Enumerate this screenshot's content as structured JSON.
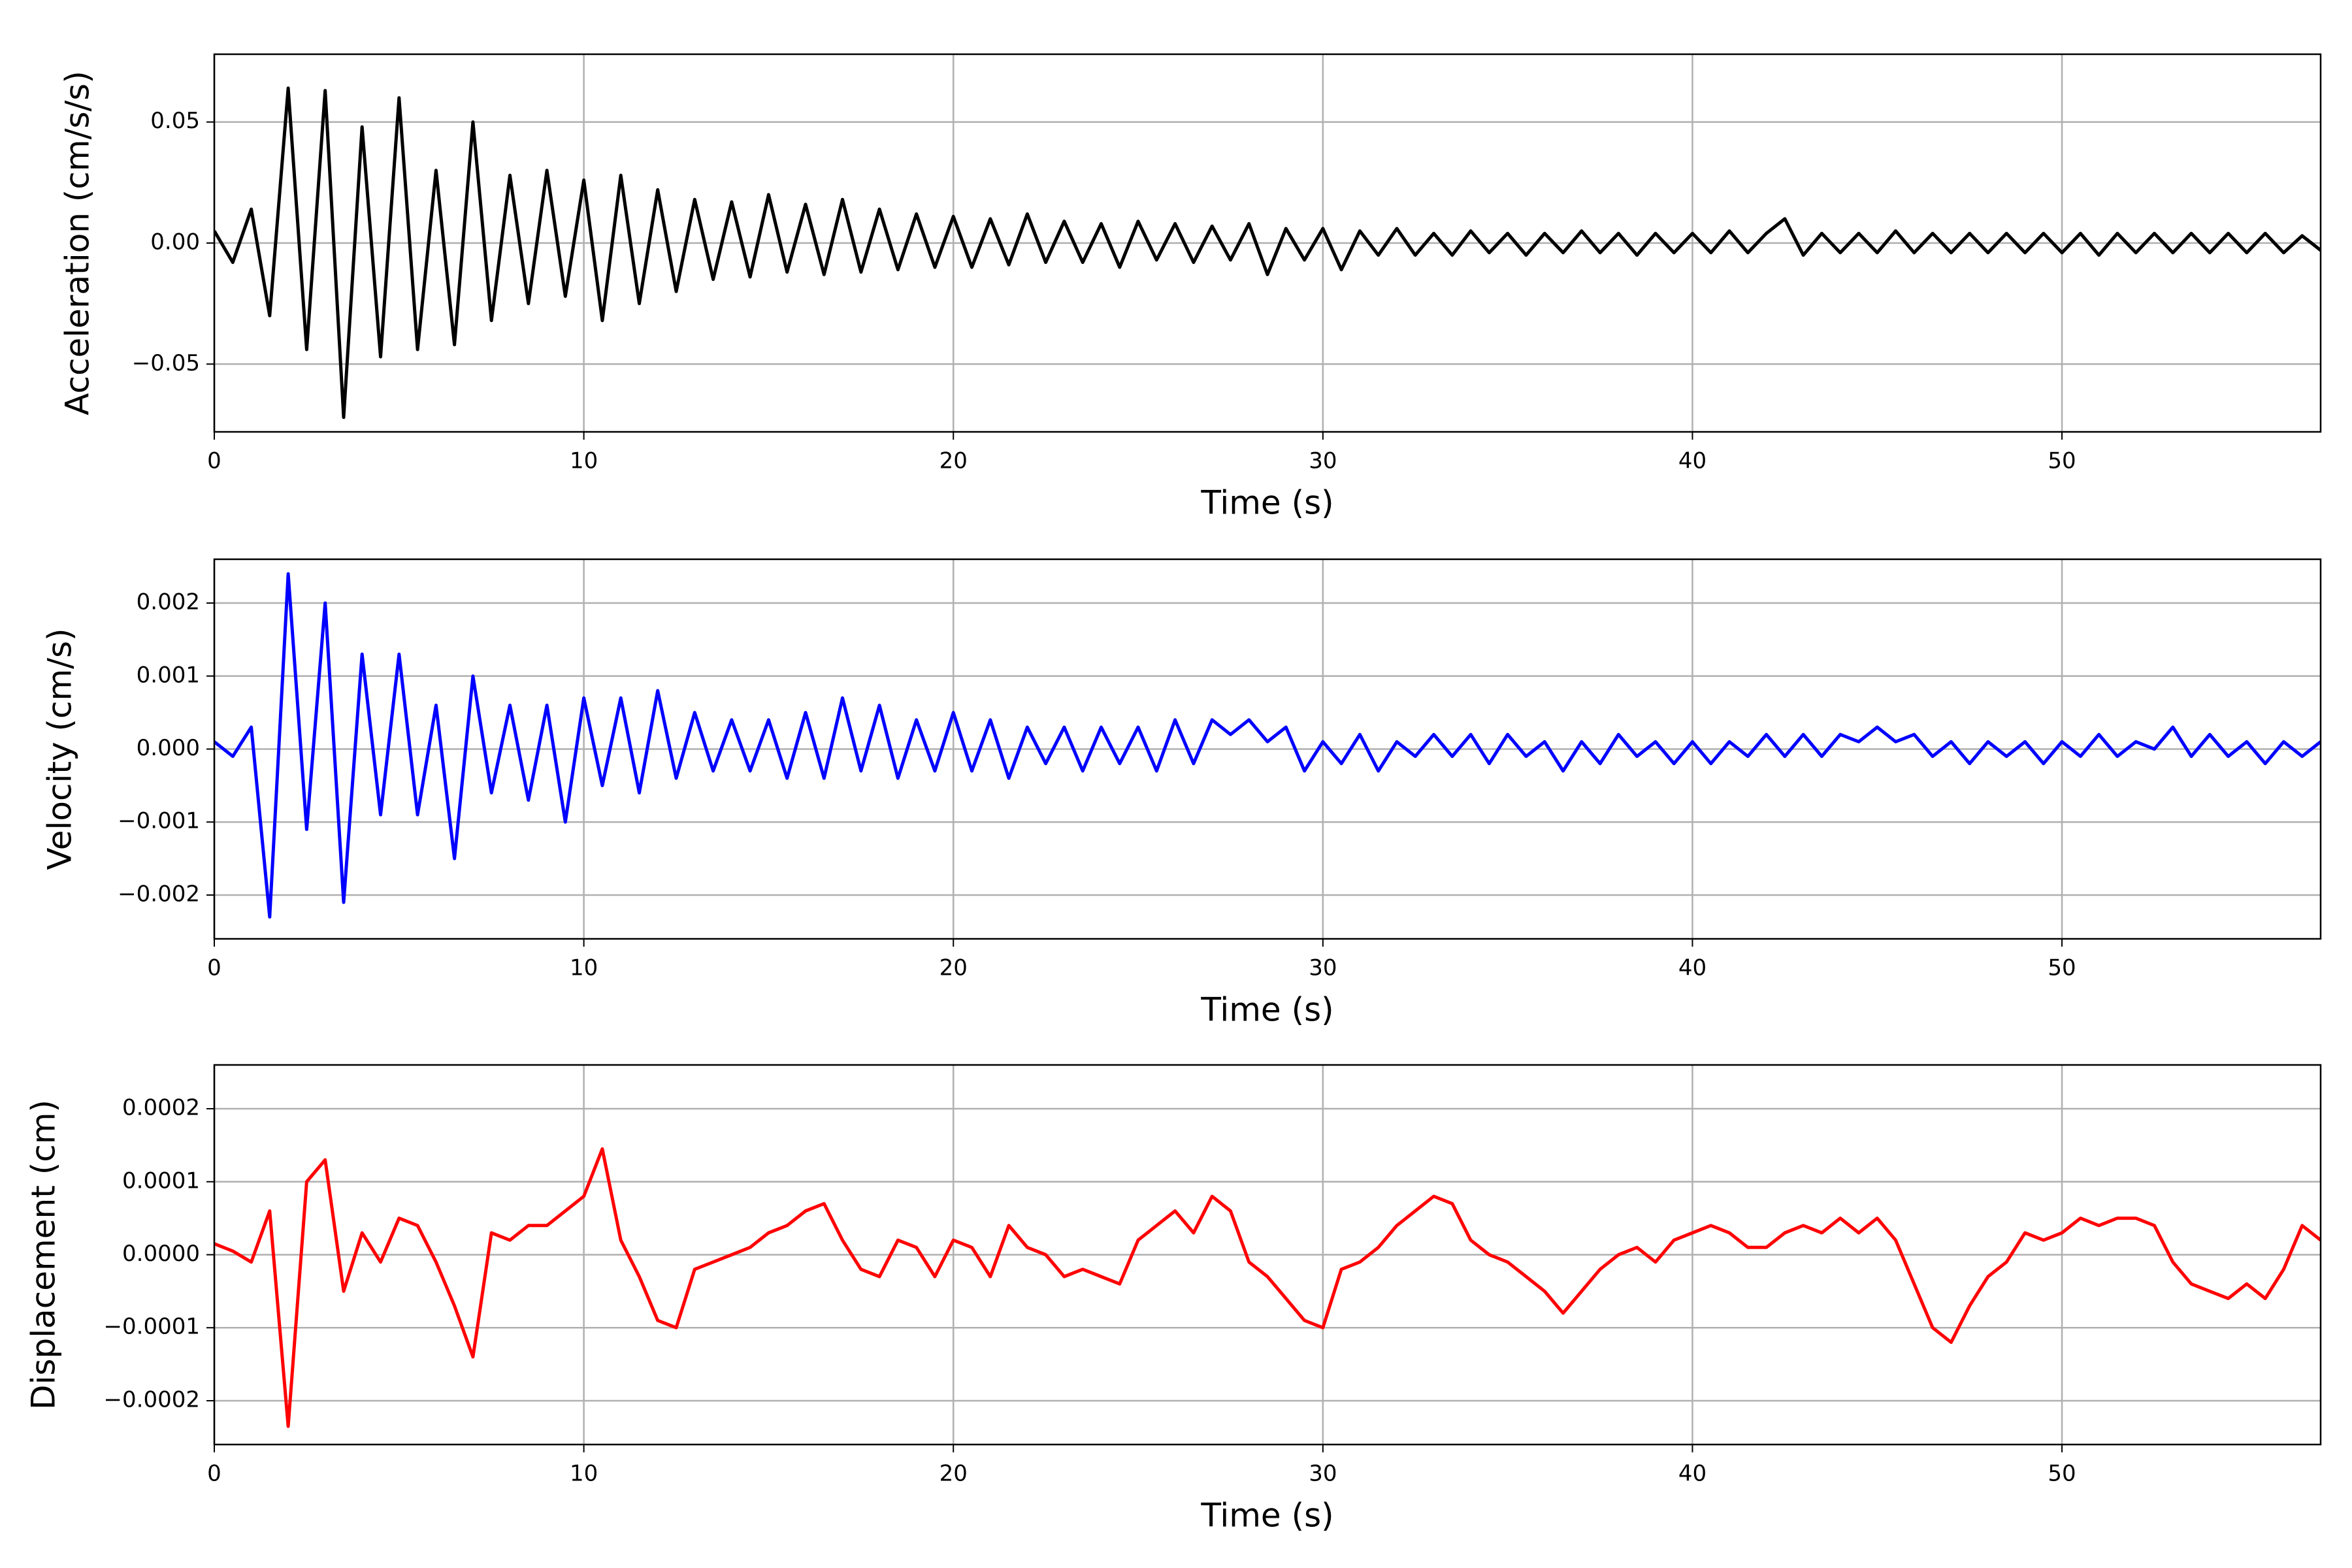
{
  "chart_data": [
    {
      "type": "line",
      "xlabel": "Time (s)",
      "ylabel": "Acceleration (cm/s/s)",
      "color": "#000000",
      "grid": true,
      "xlim": [
        0,
        57
      ],
      "xticks": [
        0,
        10,
        20,
        30,
        40,
        50
      ],
      "ylim": [
        -0.078,
        0.078
      ],
      "yticks": [
        {
          "value": -0.05,
          "label": "−0.05"
        },
        {
          "value": 0,
          "label": "0.00"
        },
        0.05
      ],
      "x": [
        0,
        0.5,
        1,
        1.5,
        2,
        2.5,
        3,
        3.5,
        4,
        4.5,
        5,
        5.5,
        6,
        6.5,
        7,
        7.5,
        8,
        8.5,
        9,
        9.5,
        10,
        10.5,
        11,
        11.5,
        12,
        12.5,
        13,
        13.5,
        14,
        14.5,
        15,
        15.5,
        16,
        16.5,
        17,
        17.5,
        18,
        18.5,
        19,
        19.5,
        20,
        20.5,
        21,
        21.5,
        22,
        22.5,
        23,
        23.5,
        24,
        24.5,
        25,
        25.5,
        26,
        26.5,
        27,
        27.5,
        28,
        28.5,
        29,
        29.5,
        30,
        30.5,
        31,
        31.5,
        32,
        32.5,
        33,
        33.5,
        34,
        34.5,
        35,
        35.5,
        36,
        36.5,
        37,
        37.5,
        38,
        38.5,
        39,
        39.5,
        40,
        40.5,
        41,
        41.5,
        42,
        42.5,
        43,
        43.5,
        44,
        44.5,
        45,
        45.5,
        46,
        46.5,
        47,
        47.5,
        48,
        48.5,
        49,
        49.5,
        50,
        50.5,
        51,
        51.5,
        52,
        52.5,
        53,
        53.5,
        54,
        54.5,
        55,
        55.5,
        56,
        56.5,
        57
      ],
      "values": [
        0.005,
        -0.008,
        0.014,
        -0.03,
        0.064,
        -0.044,
        0.063,
        -0.072,
        0.048,
        -0.047,
        0.06,
        -0.044,
        0.03,
        -0.042,
        0.05,
        -0.032,
        0.028,
        -0.025,
        0.03,
        -0.022,
        0.026,
        -0.032,
        0.028,
        -0.025,
        0.022,
        -0.02,
        0.018,
        -0.015,
        0.017,
        -0.014,
        0.02,
        -0.012,
        0.016,
        -0.013,
        0.018,
        -0.012,
        0.014,
        -0.011,
        0.012,
        -0.01,
        0.011,
        -0.01,
        0.01,
        -0.009,
        0.012,
        -0.008,
        0.009,
        -0.008,
        0.008,
        -0.01,
        0.009,
        -0.007,
        0.008,
        -0.008,
        0.007,
        -0.007,
        0.008,
        -0.013,
        0.006,
        -0.007,
        0.006,
        -0.011,
        0.005,
        -0.005,
        0.006,
        -0.005,
        0.004,
        -0.005,
        0.005,
        -0.004,
        0.004,
        -0.005,
        0.004,
        -0.004,
        0.005,
        -0.004,
        0.004,
        -0.005,
        0.004,
        -0.004,
        0.004,
        -0.004,
        0.005,
        -0.004,
        0.004,
        0.01,
        -0.005,
        0.004,
        -0.004,
        0.004,
        -0.004,
        0.005,
        -0.004,
        0.004,
        -0.004,
        0.004,
        -0.004,
        0.004,
        -0.004,
        0.004,
        -0.004,
        0.004,
        -0.005,
        0.004,
        -0.004,
        0.004,
        -0.004,
        0.004,
        -0.004,
        0.004,
        -0.004,
        0.004,
        -0.004,
        0.003,
        -0.003
      ]
    },
    {
      "type": "line",
      "xlabel": "Time (s)",
      "ylabel": "Velocity (cm/s)",
      "color": "#0000ff",
      "grid": true,
      "xlim": [
        0,
        57
      ],
      "xticks": [
        0,
        10,
        20,
        30,
        40,
        50
      ],
      "ylim": [
        -0.0026,
        0.0026
      ],
      "yticks": [
        {
          "value": -0.002,
          "label": "−0.002"
        },
        {
          "value": -0.001,
          "label": "−0.001"
        },
        {
          "value": 0,
          "label": "0.000"
        },
        0.001,
        0.002
      ],
      "x": [
        0,
        0.5,
        1,
        1.5,
        2,
        2.5,
        3,
        3.5,
        4,
        4.5,
        5,
        5.5,
        6,
        6.5,
        7,
        7.5,
        8,
        8.5,
        9,
        9.5,
        10,
        10.5,
        11,
        11.5,
        12,
        12.5,
        13,
        13.5,
        14,
        14.5,
        15,
        15.5,
        16,
        16.5,
        17,
        17.5,
        18,
        18.5,
        19,
        19.5,
        20,
        20.5,
        21,
        21.5,
        22,
        22.5,
        23,
        23.5,
        24,
        24.5,
        25,
        25.5,
        26,
        26.5,
        27,
        27.5,
        28,
        28.5,
        29,
        29.5,
        30,
        30.5,
        31,
        31.5,
        32,
        32.5,
        33,
        33.5,
        34,
        34.5,
        35,
        35.5,
        36,
        36.5,
        37,
        37.5,
        38,
        38.5,
        39,
        39.5,
        40,
        40.5,
        41,
        41.5,
        42,
        42.5,
        43,
        43.5,
        44,
        44.5,
        45,
        45.5,
        46,
        46.5,
        47,
        47.5,
        48,
        48.5,
        49,
        49.5,
        50,
        50.5,
        51,
        51.5,
        52,
        52.5,
        53,
        53.5,
        54,
        54.5,
        55,
        55.5,
        56,
        56.5,
        57
      ],
      "values": [
        0.0001,
        -0.0001,
        0.0003,
        -0.0023,
        0.0024,
        -0.0011,
        0.002,
        -0.0021,
        0.0013,
        -0.0009,
        0.0013,
        -0.0009,
        0.0006,
        -0.0015,
        0.001,
        -0.0006,
        0.0006,
        -0.0007,
        0.0006,
        -0.001,
        0.0007,
        -0.0005,
        0.0007,
        -0.0006,
        0.0008,
        -0.0004,
        0.0005,
        -0.0003,
        0.0004,
        -0.0003,
        0.0004,
        -0.0004,
        0.0005,
        -0.0004,
        0.0007,
        -0.0003,
        0.0006,
        -0.0004,
        0.0004,
        -0.0003,
        0.0005,
        -0.0003,
        0.0004,
        -0.0004,
        0.0003,
        -0.0002,
        0.0003,
        -0.0003,
        0.0003,
        -0.0002,
        0.0003,
        -0.0003,
        0.0004,
        -0.0002,
        0.0004,
        0.0002,
        0.0004,
        0.0001,
        0.0003,
        -0.0003,
        0.0001,
        -0.0002,
        0.0002,
        -0.0003,
        0.0001,
        -0.0001,
        0.0002,
        -0.0001,
        0.0002,
        -0.0002,
        0.0002,
        -0.0001,
        0.0001,
        -0.0003,
        0.0001,
        -0.0002,
        0.0002,
        -0.0001,
        0.0001,
        -0.0002,
        0.0001,
        -0.0002,
        0.0001,
        -0.0001,
        0.0002,
        -0.0001,
        0.0002,
        -0.0001,
        0.0002,
        0.0001,
        0.0003,
        0.0001,
        0.0002,
        -0.0001,
        0.0001,
        -0.0002,
        0.0001,
        -0.0001,
        0.0001,
        -0.0002,
        0.0001,
        -0.0001,
        0.0002,
        -0.0001,
        0.0001,
        0,
        0.0003,
        -0.0001,
        0.0002,
        -0.0001,
        0.0001,
        -0.0002,
        0.0001,
        -0.0001,
        0.0001
      ]
    },
    {
      "type": "line",
      "xlabel": "Time (s)",
      "ylabel": "Displacement (cm)",
      "color": "#ff0000",
      "grid": true,
      "xlim": [
        0,
        57
      ],
      "xticks": [
        0,
        10,
        20,
        30,
        40,
        50
      ],
      "ylim": [
        -0.00026,
        0.00026
      ],
      "yticks": [
        {
          "value": -0.0002,
          "label": "−0.0002"
        },
        {
          "value": -0.0001,
          "label": "−0.0001"
        },
        {
          "value": 0,
          "label": "0.0000"
        },
        0.0001,
        0.0002
      ],
      "x": [
        0,
        0.5,
        1,
        1.5,
        2,
        2.5,
        3,
        3.5,
        4,
        4.5,
        5,
        5.5,
        6,
        6.5,
        7,
        7.5,
        8,
        8.5,
        9,
        9.5,
        10,
        10.5,
        11,
        11.5,
        12,
        12.5,
        13,
        13.5,
        14,
        14.5,
        15,
        15.5,
        16,
        16.5,
        17,
        17.5,
        18,
        18.5,
        19,
        19.5,
        20,
        20.5,
        21,
        21.5,
        22,
        22.5,
        23,
        23.5,
        24,
        24.5,
        25,
        25.5,
        26,
        26.5,
        27,
        27.5,
        28,
        28.5,
        29,
        29.5,
        30,
        30.5,
        31,
        31.5,
        32,
        32.5,
        33,
        33.5,
        34,
        34.5,
        35,
        35.5,
        36,
        36.5,
        37,
        37.5,
        38,
        38.5,
        39,
        39.5,
        40,
        40.5,
        41,
        41.5,
        42,
        42.5,
        43,
        43.5,
        44,
        44.5,
        45,
        45.5,
        46,
        46.5,
        47,
        47.5,
        48,
        48.5,
        49,
        49.5,
        50,
        50.5,
        51,
        51.5,
        52,
        52.5,
        53,
        53.5,
        54,
        54.5,
        55,
        55.5,
        56,
        56.5,
        57
      ],
      "values": [
        1.5e-05,
        5e-06,
        -1e-05,
        6e-05,
        -0.000235,
        0.0001,
        0.00013,
        -5e-05,
        3e-05,
        -1e-05,
        5e-05,
        4e-05,
        -1e-05,
        -7e-05,
        -0.00014,
        3e-05,
        2e-05,
        4e-05,
        4e-05,
        6e-05,
        8e-05,
        0.000145,
        2e-05,
        -3e-05,
        -9e-05,
        -0.0001,
        -2e-05,
        -1e-05,
        0,
        1e-05,
        3e-05,
        4e-05,
        6e-05,
        7e-05,
        2e-05,
        -2e-05,
        -3e-05,
        2e-05,
        1e-05,
        -3e-05,
        2e-05,
        1e-05,
        -3e-05,
        4e-05,
        1e-05,
        0,
        -3e-05,
        -2e-05,
        -3e-05,
        -4e-05,
        2e-05,
        4e-05,
        6e-05,
        3e-05,
        8e-05,
        6e-05,
        -1e-05,
        -3e-05,
        -6e-05,
        -9e-05,
        -0.0001,
        -2e-05,
        -1e-05,
        1e-05,
        4e-05,
        6e-05,
        8e-05,
        7e-05,
        2e-05,
        0,
        -1e-05,
        -3e-05,
        -5e-05,
        -8e-05,
        -5e-05,
        -2e-05,
        0,
        1e-05,
        -1e-05,
        2e-05,
        3e-05,
        4e-05,
        3e-05,
        1e-05,
        1e-05,
        3e-05,
        4e-05,
        3e-05,
        5e-05,
        3e-05,
        5e-05,
        2e-05,
        -4e-05,
        -0.0001,
        -0.00012,
        -7e-05,
        -3e-05,
        -1e-05,
        3e-05,
        2e-05,
        3e-05,
        5e-05,
        4e-05,
        5e-05,
        5e-05,
        4e-05,
        -1e-05,
        -4e-05,
        -5e-05,
        -6e-05,
        -4e-05,
        -6e-05,
        -2e-05,
        4e-05,
        2e-05
      ]
    }
  ]
}
